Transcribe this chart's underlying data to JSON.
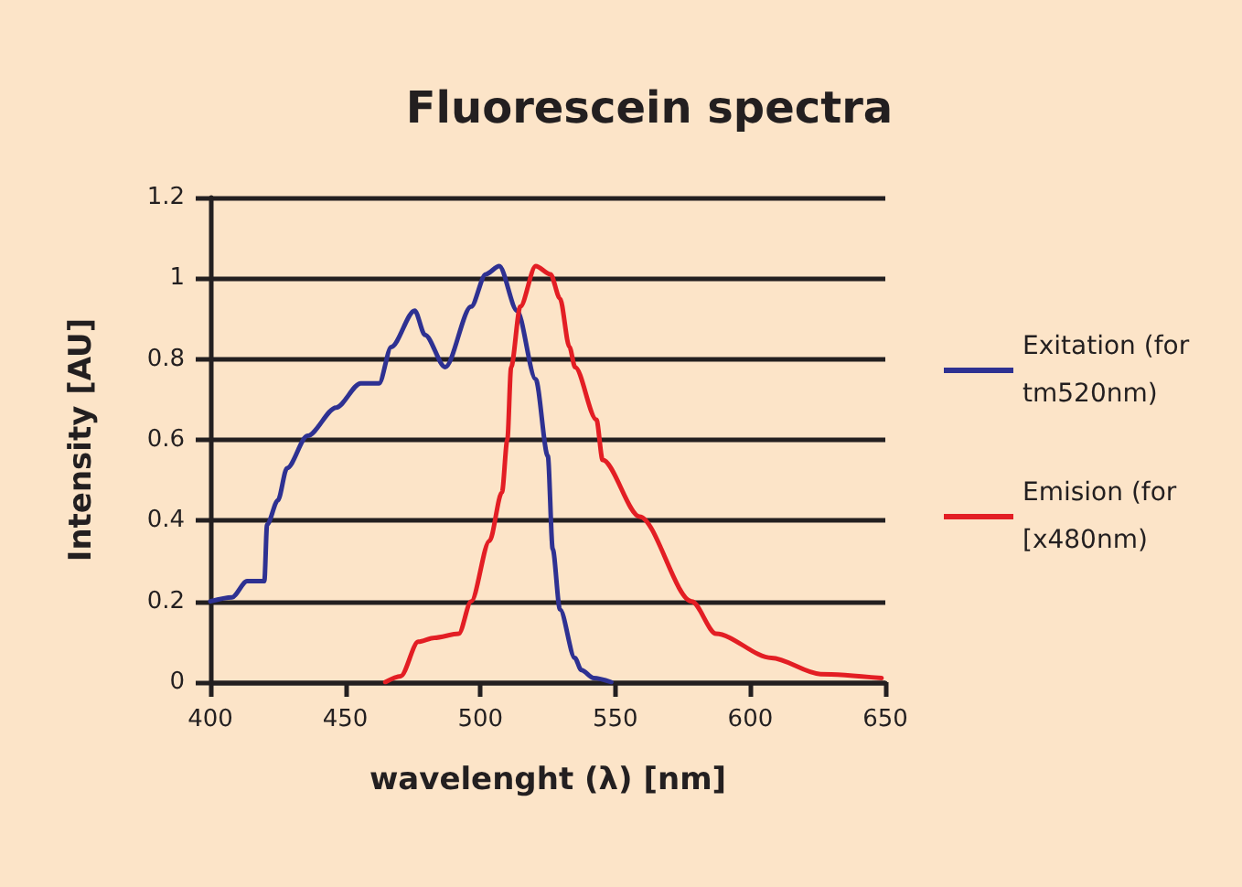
{
  "chart_data": {
    "type": "line",
    "title": "Fluorescein spectra",
    "xlabel": "wavelenght (λ) [nm]",
    "ylabel": "Intensity [AU]",
    "xlim": [
      400,
      650
    ],
    "xticks": [
      400,
      450,
      500,
      550,
      600,
      650
    ],
    "ylim": [
      0,
      1.2
    ],
    "yticks": [
      0,
      0.2,
      0.4,
      0.6,
      0.8,
      1,
      1.2
    ],
    "grid": "y",
    "legend": "right",
    "marker": "none",
    "line_style": "solid",
    "series": [
      {
        "name": "Exitation (for tm520nm)",
        "color": "#2e3192",
        "x": [
          400,
          408,
          413.6,
          420,
          421,
          425,
          428.4,
          436,
          446.6,
          455.7,
          462.5,
          467,
          475.7,
          479.5,
          487,
          496.6,
          502,
          507,
          513.6,
          520.5,
          525,
          526.8,
          529.5,
          535,
          537.4,
          542,
          548.5
        ],
        "values": [
          0.2,
          0.21,
          0.25,
          0.25,
          0.39,
          0.45,
          0.53,
          0.61,
          0.68,
          0.74,
          0.74,
          0.83,
          0.92,
          0.86,
          0.78,
          0.93,
          1.01,
          1.03,
          0.92,
          0.75,
          0.56,
          0.33,
          0.18,
          0.06,
          0.03,
          0.01,
          0
        ]
      },
      {
        "name": "Emision (for [x480nm)",
        "color": "#e31e24",
        "x": [
          464.8,
          470.5,
          477,
          483,
          492,
          496.6,
          503.4,
          508,
          510,
          511.4,
          514.8,
          520.5,
          526,
          529.5,
          533,
          535.1,
          543,
          545.3,
          559,
          578.3,
          587.3,
          607.8,
          626,
          648.6
        ],
        "values": [
          0,
          0.015,
          0.1,
          0.11,
          0.12,
          0.2,
          0.35,
          0.47,
          0.6,
          0.78,
          0.93,
          1.03,
          1.01,
          0.95,
          0.83,
          0.78,
          0.65,
          0.55,
          0.41,
          0.2,
          0.12,
          0.06,
          0.02,
          0.01
        ]
      }
    ]
  }
}
